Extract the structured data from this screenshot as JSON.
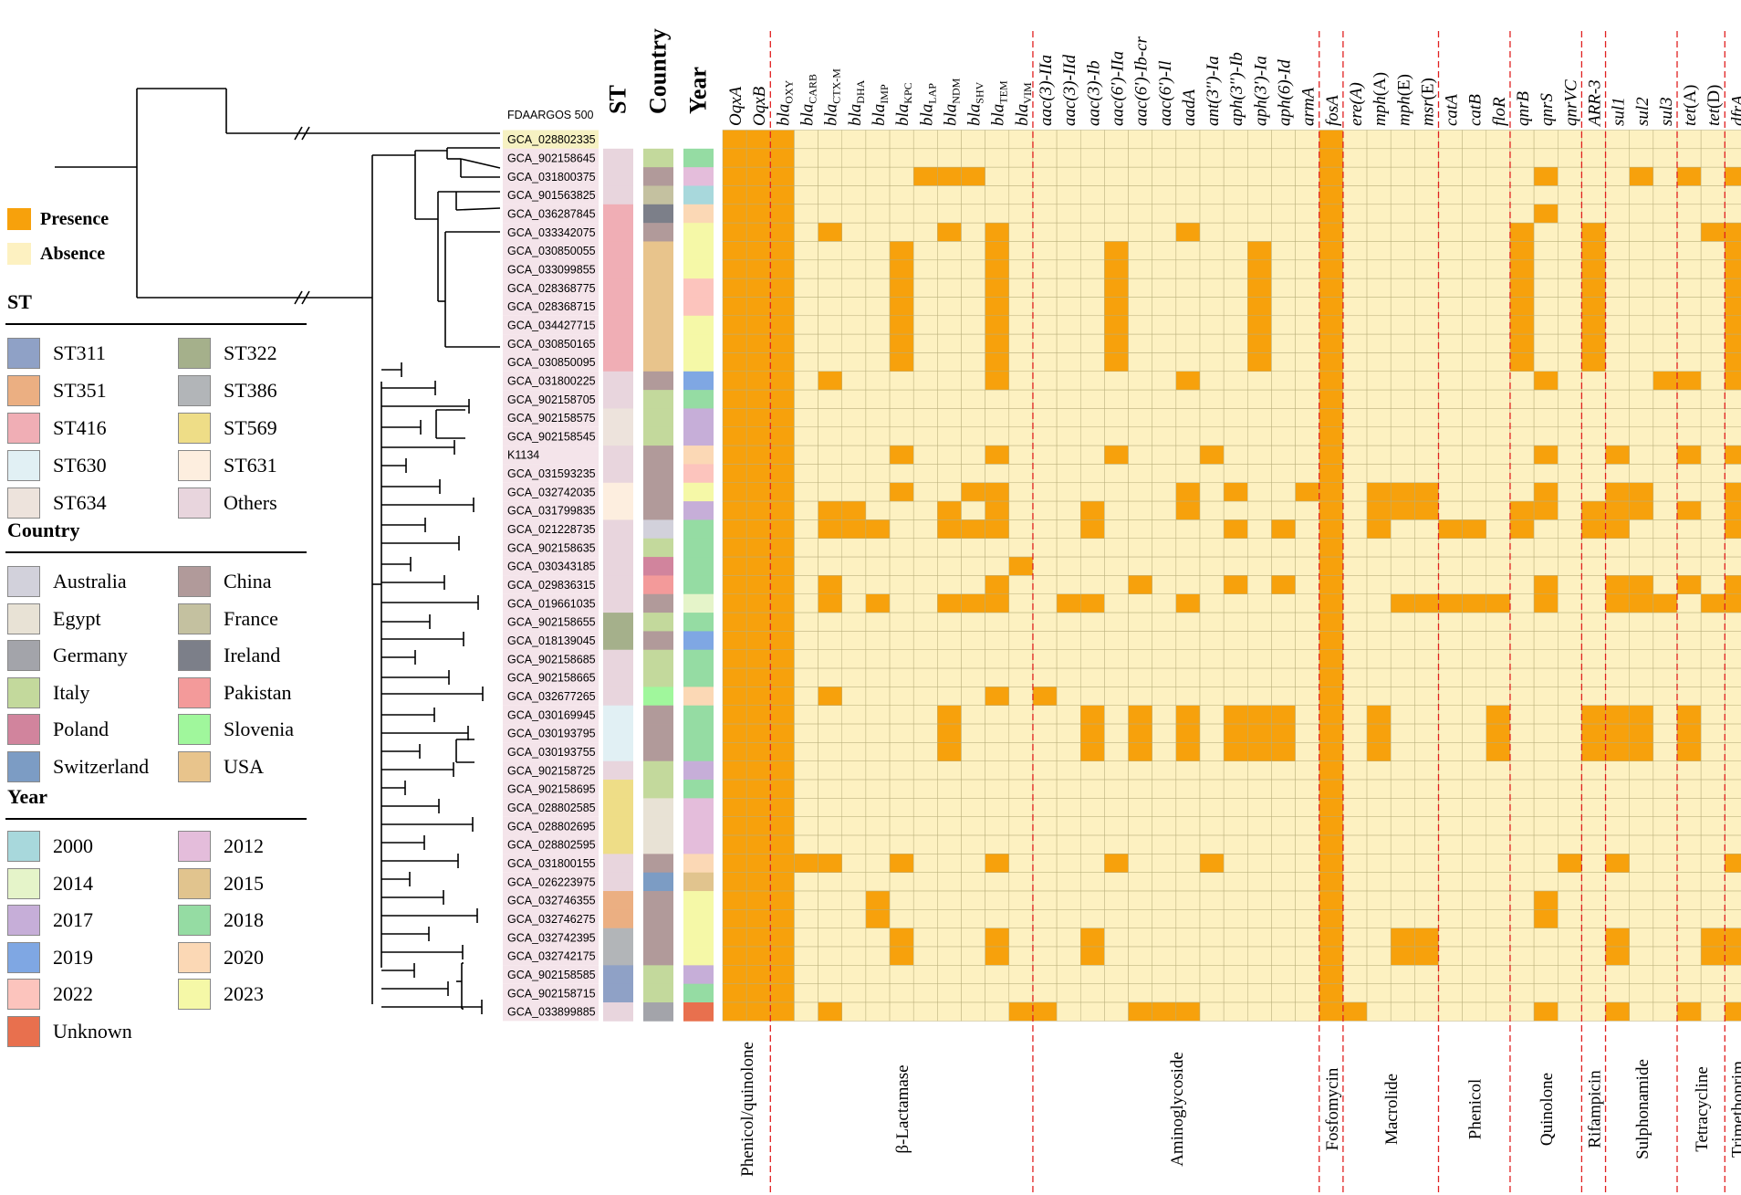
{
  "reference_label": "FDAARGOS 500",
  "track_headers": [
    "ST",
    "Country",
    "Year"
  ],
  "presence_absence_legend": [
    {
      "label": "Presence",
      "color": "#F7A10C"
    },
    {
      "label": "Absence",
      "color": "#FDF1C1"
    }
  ],
  "legends": {
    "st": {
      "title": "ST",
      "items": [
        {
          "label": "ST311",
          "color": "#8FA1C6"
        },
        {
          "label": "ST322",
          "color": "#A5B08B"
        },
        {
          "label": "ST351",
          "color": "#EBAF82"
        },
        {
          "label": "ST386",
          "color": "#B2B5B8"
        },
        {
          "label": "ST416",
          "color": "#F0AEB5"
        },
        {
          "label": "ST569",
          "color": "#EEDD87"
        },
        {
          "label": "ST630",
          "color": "#E1F0F4"
        },
        {
          "label": "ST631",
          "color": "#FDEEDF"
        },
        {
          "label": "ST634",
          "color": "#EDE3DC"
        },
        {
          "label": "Others",
          "color": "#E8D5DD"
        }
      ]
    },
    "country": {
      "title": "Country",
      "items": [
        {
          "label": "Australia",
          "color": "#D2D1DB"
        },
        {
          "label": "China",
          "color": "#B19A9A"
        },
        {
          "label": "Egypt",
          "color": "#E8E2D5"
        },
        {
          "label": "France",
          "color": "#C4C1A0"
        },
        {
          "label": "Germany",
          "color": "#A3A4AA"
        },
        {
          "label": "Ireland",
          "color": "#7C7F89"
        },
        {
          "label": "Italy",
          "color": "#C3D99C"
        },
        {
          "label": "Pakistan",
          "color": "#F39A9A"
        },
        {
          "label": "Poland",
          "color": "#D1849D"
        },
        {
          "label": "Slovenia",
          "color": "#A0F79C"
        },
        {
          "label": "Switzerland",
          "color": "#7C9CC4"
        },
        {
          "label": "USA",
          "color": "#E8C48C"
        }
      ]
    },
    "year": {
      "title": "Year",
      "items": [
        {
          "label": "2000",
          "color": "#A8D8DC"
        },
        {
          "label": "2012",
          "color": "#E4BDDB"
        },
        {
          "label": "2014",
          "color": "#E5F4C9"
        },
        {
          "label": "2015",
          "color": "#E1C48E"
        },
        {
          "label": "2017",
          "color": "#C6AED8"
        },
        {
          "label": "2018",
          "color": "#95DCA3"
        },
        {
          "label": "2019",
          "color": "#7FA7E3"
        },
        {
          "label": "2020",
          "color": "#FBD8B5"
        },
        {
          "label": "2022",
          "color": "#FCC4BD"
        },
        {
          "label": "2023",
          "color": "#F5F8A7"
        },
        {
          "label": "Unknown",
          "color": "#E8704E"
        }
      ]
    }
  },
  "genes": [
    {
      "name": "OqxA",
      "style": "italic"
    },
    {
      "name": "OqxB",
      "style": "italic"
    },
    {
      "name": "bla",
      "sub": "OXY",
      "style": "bla"
    },
    {
      "name": "bla",
      "sub": "CARB",
      "style": "bla"
    },
    {
      "name": "bla",
      "sub": "CTX-M",
      "style": "bla"
    },
    {
      "name": "bla",
      "sub": "DHA",
      "style": "bla"
    },
    {
      "name": "bla",
      "sub": "IMP",
      "style": "bla"
    },
    {
      "name": "bla",
      "sub": "KPC",
      "style": "bla"
    },
    {
      "name": "bla",
      "sub": "LAP",
      "style": "bla"
    },
    {
      "name": "bla",
      "sub": "NDM",
      "style": "bla"
    },
    {
      "name": "bla",
      "sub": "SHV",
      "style": "bla"
    },
    {
      "name": "bla",
      "sub": "TEM",
      "style": "bla"
    },
    {
      "name": "bla",
      "sub": "VIM",
      "style": "bla"
    },
    {
      "name": "aac(3)-IIa",
      "style": "italic"
    },
    {
      "name": "aac(3)-IId",
      "style": "italic"
    },
    {
      "name": "aac(3)-Ib",
      "style": "italic"
    },
    {
      "name": "aac(6')-IIa",
      "style": "italic"
    },
    {
      "name": "aac(6')-Ib-cr",
      "style": "italic"
    },
    {
      "name": "aac(6')-Il",
      "style": "italic"
    },
    {
      "name": "aadA",
      "style": "italic"
    },
    {
      "name": "ant(3'')-Ia",
      "style": "italic"
    },
    {
      "name": "aph(3'')-Ib",
      "style": "italic"
    },
    {
      "name": "aph(3')-Ia",
      "style": "italic"
    },
    {
      "name": "aph(6)-Id",
      "style": "italic"
    },
    {
      "name": "armA",
      "style": "italic"
    },
    {
      "name": "fosA",
      "style": "italic"
    },
    {
      "name": "ere(A)",
      "style": "italic"
    },
    {
      "name": "mph(A)",
      "style": "mixed"
    },
    {
      "name": "mph(E)",
      "style": "mixed"
    },
    {
      "name": "msr(E)",
      "style": "mixed"
    },
    {
      "name": "catA",
      "style": "italic"
    },
    {
      "name": "catB",
      "style": "italic"
    },
    {
      "name": "floR",
      "style": "italic"
    },
    {
      "name": "qnrB",
      "style": "italic"
    },
    {
      "name": "qnrS",
      "style": "italic"
    },
    {
      "name": "qnrVC",
      "style": "italic"
    },
    {
      "name": "ARR-3",
      "style": "italic"
    },
    {
      "name": "sul1",
      "style": "italic"
    },
    {
      "name": "sul2",
      "style": "italic"
    },
    {
      "name": "sul3",
      "style": "italic"
    },
    {
      "name": "tet(A)",
      "style": "mixed"
    },
    {
      "name": "tet(D)",
      "style": "mixed"
    },
    {
      "name": "dfrA",
      "style": "italic"
    }
  ],
  "classes": [
    {
      "label": "Phenicol/quinolone",
      "start": 0,
      "end": 1
    },
    {
      "label": "β-Lactamase",
      "start": 2,
      "end": 12
    },
    {
      "label": "Aminoglycoside",
      "start": 13,
      "end": 24
    },
    {
      "label": "Fosfomycin",
      "start": 25,
      "end": 25
    },
    {
      "label": "Macrolide",
      "start": 26,
      "end": 29
    },
    {
      "label": "Phenicol",
      "start": 30,
      "end": 32
    },
    {
      "label": "Quinolone",
      "start": 33,
      "end": 35
    },
    {
      "label": "Rifampicin",
      "start": 36,
      "end": 36
    },
    {
      "label": "Sulphonamide",
      "start": 37,
      "end": 39
    },
    {
      "label": "Tetracycline",
      "start": 40,
      "end": 41
    },
    {
      "label": "Trimethoprim",
      "start": 42,
      "end": 42
    }
  ],
  "strains": [
    {
      "id": "GCA_028802335",
      "st": "",
      "country": "",
      "year": "",
      "genes": []
    },
    {
      "id": "GCA_902158645",
      "st": "Others",
      "country": "Italy",
      "year": "2018",
      "genes": []
    },
    {
      "id": "GCA_031800375",
      "st": "Others",
      "country": "China",
      "year": "2012",
      "genes": [
        "bla LAP",
        "bla NDM",
        "bla SHV",
        "qnrS",
        "sul2",
        "tet(A)",
        "dfrA"
      ]
    },
    {
      "id": "GCA_901563825",
      "st": "Others",
      "country": "France",
      "year": "2000",
      "genes": []
    },
    {
      "id": "GCA_036287845",
      "st": "ST416",
      "country": "Ireland",
      "year": "2020",
      "genes": [
        "qnrS"
      ]
    },
    {
      "id": "GCA_033342075",
      "st": "ST416",
      "country": "China",
      "year": "2023",
      "genes": [
        "bla CTX-M",
        "bla NDM",
        "bla TEM",
        "aadA",
        "qnrB",
        "ARR-3",
        "tet(D)",
        "dfrA"
      ]
    },
    {
      "id": "GCA_030850055",
      "st": "ST416",
      "country": "USA",
      "year": "2023",
      "genes": [
        "bla KPC",
        "bla TEM",
        "aac(6')-IIa",
        "aph(3')-Ia",
        "qnrB",
        "ARR-3",
        "dfrA"
      ]
    },
    {
      "id": "GCA_033099855",
      "st": "ST416",
      "country": "USA",
      "year": "2023",
      "genes": [
        "bla KPC",
        "bla TEM",
        "aac(6')-IIa",
        "aph(3')-Ia",
        "qnrB",
        "ARR-3",
        "dfrA"
      ]
    },
    {
      "id": "GCA_028368775",
      "st": "ST416",
      "country": "USA",
      "year": "2022",
      "genes": [
        "bla KPC",
        "bla TEM",
        "aac(6')-IIa",
        "aph(3')-Ia",
        "qnrB",
        "ARR-3",
        "dfrA"
      ]
    },
    {
      "id": "GCA_028368715",
      "st": "ST416",
      "country": "USA",
      "year": "2022",
      "genes": [
        "bla KPC",
        "bla TEM",
        "aac(6')-IIa",
        "aph(3')-Ia",
        "qnrB",
        "ARR-3",
        "dfrA"
      ]
    },
    {
      "id": "GCA_034427715",
      "st": "ST416",
      "country": "USA",
      "year": "2023",
      "genes": [
        "bla KPC",
        "bla TEM",
        "aac(6')-IIa",
        "aph(3')-Ia",
        "qnrB",
        "ARR-3",
        "dfrA"
      ]
    },
    {
      "id": "GCA_030850165",
      "st": "ST416",
      "country": "USA",
      "year": "2023",
      "genes": [
        "bla KPC",
        "bla TEM",
        "aac(6')-IIa",
        "aph(3')-Ia",
        "qnrB",
        "ARR-3",
        "dfrA"
      ]
    },
    {
      "id": "GCA_030850095",
      "st": "ST416",
      "country": "USA",
      "year": "2023",
      "genes": [
        "bla KPC",
        "bla TEM",
        "aac(6')-IIa",
        "aph(3')-Ia",
        "qnrB",
        "ARR-3",
        "dfrA"
      ]
    },
    {
      "id": "GCA_031800225",
      "st": "Others",
      "country": "China",
      "year": "2019",
      "genes": [
        "bla CTX-M",
        "bla TEM",
        "aadA",
        "qnrS",
        "sul3",
        "tet(A)",
        "dfrA"
      ]
    },
    {
      "id": "GCA_902158705",
      "st": "Others",
      "country": "Italy",
      "year": "2018",
      "genes": []
    },
    {
      "id": "GCA_902158575",
      "st": "ST634",
      "country": "Italy",
      "year": "2017",
      "genes": []
    },
    {
      "id": "GCA_902158545",
      "st": "ST634",
      "country": "Italy",
      "year": "2017",
      "genes": []
    },
    {
      "id": "K1134",
      "st": "Others",
      "country": "China",
      "year": "2020",
      "genes": [
        "bla KPC",
        "bla TEM",
        "aac(6')-IIa",
        "ant(3'')-Ia",
        "qnrS",
        "sul1",
        "tet(A)",
        "dfrA"
      ]
    },
    {
      "id": "GCA_031593235",
      "st": "Others",
      "country": "China",
      "year": "2022",
      "genes": []
    },
    {
      "id": "GCA_032742035",
      "st": "ST631",
      "country": "China",
      "year": "2023",
      "genes": [
        "bla KPC",
        "bla SHV",
        "bla TEM",
        "aadA",
        "aph(3'')-Ib",
        "armA",
        "mph(A)",
        "mph(E)",
        "msr(E)",
        "qnrS",
        "sul1",
        "sul2",
        "dfrA"
      ]
    },
    {
      "id": "GCA_031799835",
      "st": "ST631",
      "country": "China",
      "year": "2017",
      "genes": [
        "bla CTX-M",
        "bla DHA",
        "bla NDM",
        "bla TEM",
        "aadA",
        "aac(3)-Ib",
        "mph(A)",
        "mph(E)",
        "msr(E)",
        "qnrB",
        "qnrS",
        "ARR-3",
        "sul1",
        "sul2",
        "tet(A)",
        "dfrA"
      ]
    },
    {
      "id": "GCA_021228735",
      "st": "Others",
      "country": "Australia",
      "year": "2018",
      "genes": [
        "bla CTX-M",
        "bla DHA",
        "bla IMP",
        "bla NDM",
        "bla SHV",
        "bla TEM",
        "aac(3)-Ib",
        "aph(3'')-Ib",
        "aph(6)-Id",
        "mph(A)",
        "catA",
        "catB",
        "qnrB",
        "ARR-3",
        "sul1",
        "dfrA"
      ]
    },
    {
      "id": "GCA_902158635",
      "st": "Others",
      "country": "Italy",
      "year": "2018",
      "genes": []
    },
    {
      "id": "GCA_030343185",
      "st": "Others",
      "country": "Poland",
      "year": "2018",
      "genes": [
        "bla VIM"
      ]
    },
    {
      "id": "GCA_029836315",
      "st": "Others",
      "country": "Pakistan",
      "year": "2018",
      "genes": [
        "bla CTX-M",
        "bla TEM",
        "aac(6')-Ib-cr",
        "aph(3'')-Ib",
        "aph(6)-Id",
        "qnrS",
        "sul1",
        "sul2",
        "tet(A)",
        "dfrA"
      ]
    },
    {
      "id": "GCA_019661035",
      "st": "Others",
      "country": "China",
      "year": "2014",
      "genes": [
        "bla CTX-M",
        "bla IMP",
        "bla NDM",
        "bla SHV",
        "bla TEM",
        "aac(3)-IId",
        "aac(3)-Ib",
        "aadA",
        "mph(E)",
        "msr(E)",
        "catA",
        "catB",
        "floR",
        "qnrS",
        "sul1",
        "sul2",
        "sul3",
        "tet(D)",
        "dfrA"
      ]
    },
    {
      "id": "GCA_902158655",
      "st": "ST322",
      "country": "Italy",
      "year": "2018",
      "genes": []
    },
    {
      "id": "GCA_018139045",
      "st": "ST322",
      "country": "China",
      "year": "2019",
      "genes": []
    },
    {
      "id": "GCA_902158685",
      "st": "Others",
      "country": "Italy",
      "year": "2018",
      "genes": []
    },
    {
      "id": "GCA_902158665",
      "st": "Others",
      "country": "Italy",
      "year": "2018",
      "genes": []
    },
    {
      "id": "GCA_032677265",
      "st": "Others",
      "country": "Slovenia",
      "year": "2020",
      "genes": [
        "bla CTX-M",
        "bla TEM",
        "aac(3)-IIa"
      ]
    },
    {
      "id": "GCA_030169945",
      "st": "ST630",
      "country": "China",
      "year": "2018",
      "genes": [
        "bla NDM",
        "aac(3)-Ib",
        "aac(6')-Ib-cr",
        "aadA",
        "aph(3'')-Ib",
        "aph(3')-Ia",
        "aph(6)-Id",
        "mph(A)",
        "floR",
        "ARR-3",
        "sul1",
        "sul2",
        "tet(A)"
      ]
    },
    {
      "id": "GCA_030193795",
      "st": "ST630",
      "country": "China",
      "year": "2018",
      "genes": [
        "bla NDM",
        "aac(3)-Ib",
        "aac(6')-Ib-cr",
        "aadA",
        "aph(3'')-Ib",
        "aph(3')-Ia",
        "aph(6)-Id",
        "mph(A)",
        "floR",
        "ARR-3",
        "sul1",
        "sul2",
        "tet(A)"
      ]
    },
    {
      "id": "GCA_030193755",
      "st": "ST630",
      "country": "China",
      "year": "2018",
      "genes": [
        "bla NDM",
        "aac(3)-Ib",
        "aac(6')-Ib-cr",
        "aadA",
        "aph(3'')-Ib",
        "aph(3')-Ia",
        "aph(6)-Id",
        "mph(A)",
        "floR",
        "ARR-3",
        "sul1",
        "sul2",
        "tet(A)"
      ]
    },
    {
      "id": "GCA_902158725",
      "st": "Others",
      "country": "Italy",
      "year": "2017",
      "genes": []
    },
    {
      "id": "GCA_902158695",
      "st": "ST569",
      "country": "Italy",
      "year": "2018",
      "genes": []
    },
    {
      "id": "GCA_028802585",
      "st": "ST569",
      "country": "Egypt",
      "year": "2012",
      "genes": []
    },
    {
      "id": "GCA_028802695",
      "st": "ST569",
      "country": "Egypt",
      "year": "2012",
      "genes": []
    },
    {
      "id": "GCA_028802595",
      "st": "ST569",
      "country": "Egypt",
      "year": "2012",
      "genes": []
    },
    {
      "id": "GCA_031800155",
      "st": "Others",
      "country": "China",
      "year": "2020",
      "genes": [
        "bla CARB",
        "bla CTX-M",
        "bla KPC",
        "bla TEM",
        "aac(6')-IIa",
        "ant(3'')-Ia",
        "qnrVC",
        "sul1",
        "dfrA"
      ]
    },
    {
      "id": "GCA_026223975",
      "st": "Others",
      "country": "Switzerland",
      "year": "2015",
      "genes": []
    },
    {
      "id": "GCA_032746355",
      "st": "ST351",
      "country": "China",
      "year": "2023",
      "genes": [
        "bla IMP",
        "qnrS"
      ]
    },
    {
      "id": "GCA_032746275",
      "st": "ST351",
      "country": "China",
      "year": "2023",
      "genes": [
        "bla IMP",
        "qnrS"
      ]
    },
    {
      "id": "GCA_032742395",
      "st": "ST386",
      "country": "China",
      "year": "2023",
      "genes": [
        "bla KPC",
        "bla TEM",
        "aac(3)-Ib",
        "mph(E)",
        "msr(E)",
        "sul1",
        "tet(D)",
        "dfrA"
      ]
    },
    {
      "id": "GCA_032742175",
      "st": "ST386",
      "country": "China",
      "year": "2023",
      "genes": [
        "bla KPC",
        "bla TEM",
        "aac(3)-Ib",
        "mph(E)",
        "msr(E)",
        "sul1",
        "tet(D)",
        "dfrA"
      ]
    },
    {
      "id": "GCA_902158585",
      "st": "ST311",
      "country": "Italy",
      "year": "2017",
      "genes": []
    },
    {
      "id": "GCA_902158715",
      "st": "ST311",
      "country": "Italy",
      "year": "2018",
      "genes": []
    },
    {
      "id": "GCA_033899885",
      "st": "Others",
      "country": "Germany",
      "year": "Unknown",
      "genes": [
        "bla CTX-M",
        "bla VIM",
        "aac(3)-IIa",
        "aac(6')-Ib-cr",
        "aac(6')-Il",
        "aadA",
        "ere(A)",
        "qnrS",
        "sul1",
        "tet(A)",
        "dfrA"
      ]
    }
  ],
  "always_present_genes": [
    "OqxA",
    "OqxB",
    "bla OXY",
    "fosA"
  ],
  "colors": {
    "presence": "#F7A10C",
    "absence": "#FDF1C1",
    "grid": "#B8AE7A",
    "separator": "#E02020",
    "reference_fill": "#F6F1C2",
    "strain_fill": "#F4E4EA"
  },
  "tree": {
    "_comment": "phylogenetic tree: tips are strain indices; nodes are depths (0-100) measured from the root",
    "root_split": 3,
    "root_depth": 0,
    "outgroup": {
      "tip": 0,
      "depth": 100
    },
    "ingroup_depth": 20,
    "clades": [
      {
        "node_depth": 30,
        "tips": [
          1,
          13
        ],
        "subnodes": [
          {
            "node_depth": 33,
            "tips": [
              1,
              4
            ],
            "subnodes": [
              {
                "node_depth": 36,
                "tips": [
                  2,
                  3
                ]
              },
              {
                "node_depth": 38,
                "tips": [
                  4,
                  12
                ]
              }
            ]
          },
          {
            "node_depth": 31,
            "tips": [
              13,
              48
            ]
          }
        ]
      }
    ]
  }
}
